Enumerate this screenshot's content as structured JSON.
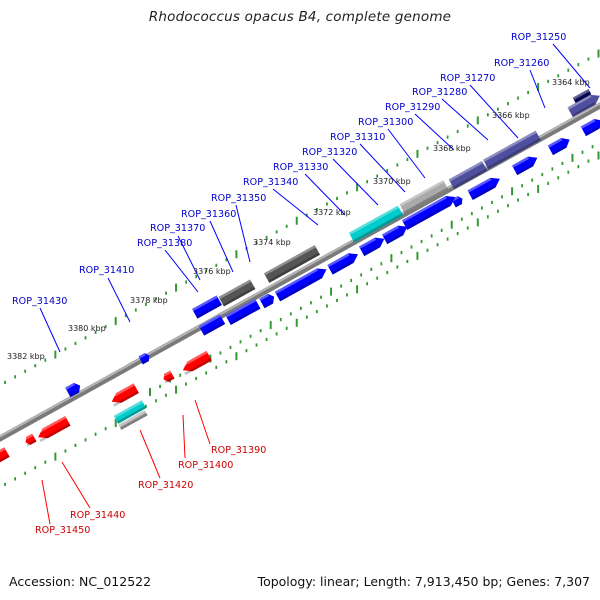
{
  "title": "Rhodococcus opacus B4, complete genome",
  "footer": {
    "accession": "Accession: NC_012522",
    "summary": "Topology: linear; Length: 7,913,450 bp; Genes: 7,307"
  },
  "colors": {
    "forward": "#0000ff",
    "reverse": "#ff0000",
    "forward_label": "#0000cc",
    "reverse_label": "#cc0000",
    "axis": "#888888",
    "tick": "#339933",
    "rna": "#00cccc",
    "pseudo_dark": "#555555",
    "pseudo_light": "#aaaaaa",
    "purple": "#4f4f9f"
  },
  "scale": {
    "unit": "kbp",
    "labels": [
      "3364 kbp",
      "3366 kbp",
      "3368 kbp",
      "3370 kbp",
      "3372 kbp",
      "3374 kbp",
      "3376 kbp",
      "3378 kbp",
      "3380 kbp",
      "3382 kbp"
    ]
  },
  "genes_forward": [
    "ROP_31250",
    "ROP_31260",
    "ROP_31270",
    "ROP_31280",
    "ROP_31290",
    "ROP_31300",
    "ROP_31310",
    "ROP_31320",
    "ROP_31330",
    "ROP_31340",
    "ROP_31350",
    "ROP_31360",
    "ROP_31370",
    "ROP_31380",
    "ROP_31410",
    "ROP_31430"
  ],
  "genes_reverse": [
    "ROP_31390",
    "ROP_31400",
    "ROP_31420",
    "ROP_31440",
    "ROP_31450"
  ]
}
